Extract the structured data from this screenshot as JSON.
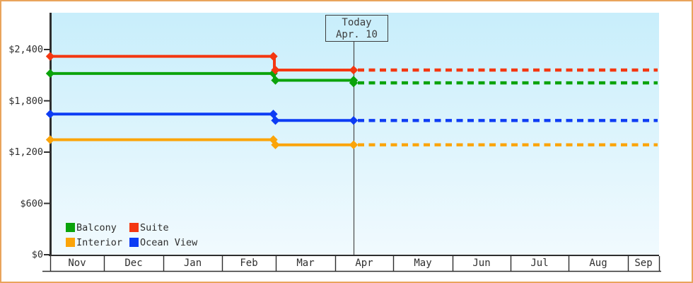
{
  "chart_data": {
    "type": "line",
    "title": "",
    "months": [
      "Nov",
      "Dec",
      "Jan",
      "Feb",
      "Mar",
      "Apr",
      "May",
      "Jun",
      "Jul",
      "Aug",
      "Sep"
    ],
    "y_ticks": [
      "$2,400",
      "$1,800",
      "$1,200",
      "$600",
      "$0"
    ],
    "y_tick_values": [
      2400,
      1800,
      1200,
      600,
      0
    ],
    "ylim": [
      0,
      2830
    ],
    "today_box": {
      "line1": "Today",
      "line2": "Apr. 10"
    },
    "today_month": "Apr",
    "price_change_at": "Mar",
    "series": [
      {
        "name": "Interior",
        "color": "#fba409",
        "price_nov_to_feb": 1345,
        "price_mar_to_today": 1285,
        "price_after_today": 1285
      },
      {
        "name": "Ocean View",
        "color": "#0d3cf4",
        "price_nov_to_feb": 1645,
        "price_mar_to_today": 1570,
        "price_after_today": 1570
      },
      {
        "name": "Balcony",
        "color": "#0ba30b",
        "price_nov_to_feb": 2120,
        "price_mar_to_today": 2040,
        "price_after_today": 2010
      },
      {
        "name": "Suite",
        "color": "#f43711",
        "price_nov_to_feb": 2320,
        "price_mar_to_today": 2160,
        "price_after_today": 2160
      }
    ],
    "legend": [
      {
        "label": "Balcony",
        "color": "#0ba30b"
      },
      {
        "label": "Suite",
        "color": "#f43711"
      },
      {
        "label": "Interior",
        "color": "#fba409"
      },
      {
        "label": "Ocean View",
        "color": "#0d3cf4"
      }
    ],
    "colors": {
      "frame_border": "#e9a45c",
      "plot_bg_top": "#c8eefb",
      "plot_bg_bottom": "#f1fafe",
      "axis": "#2e2e2e",
      "today_line": "#4a4a4a"
    }
  }
}
